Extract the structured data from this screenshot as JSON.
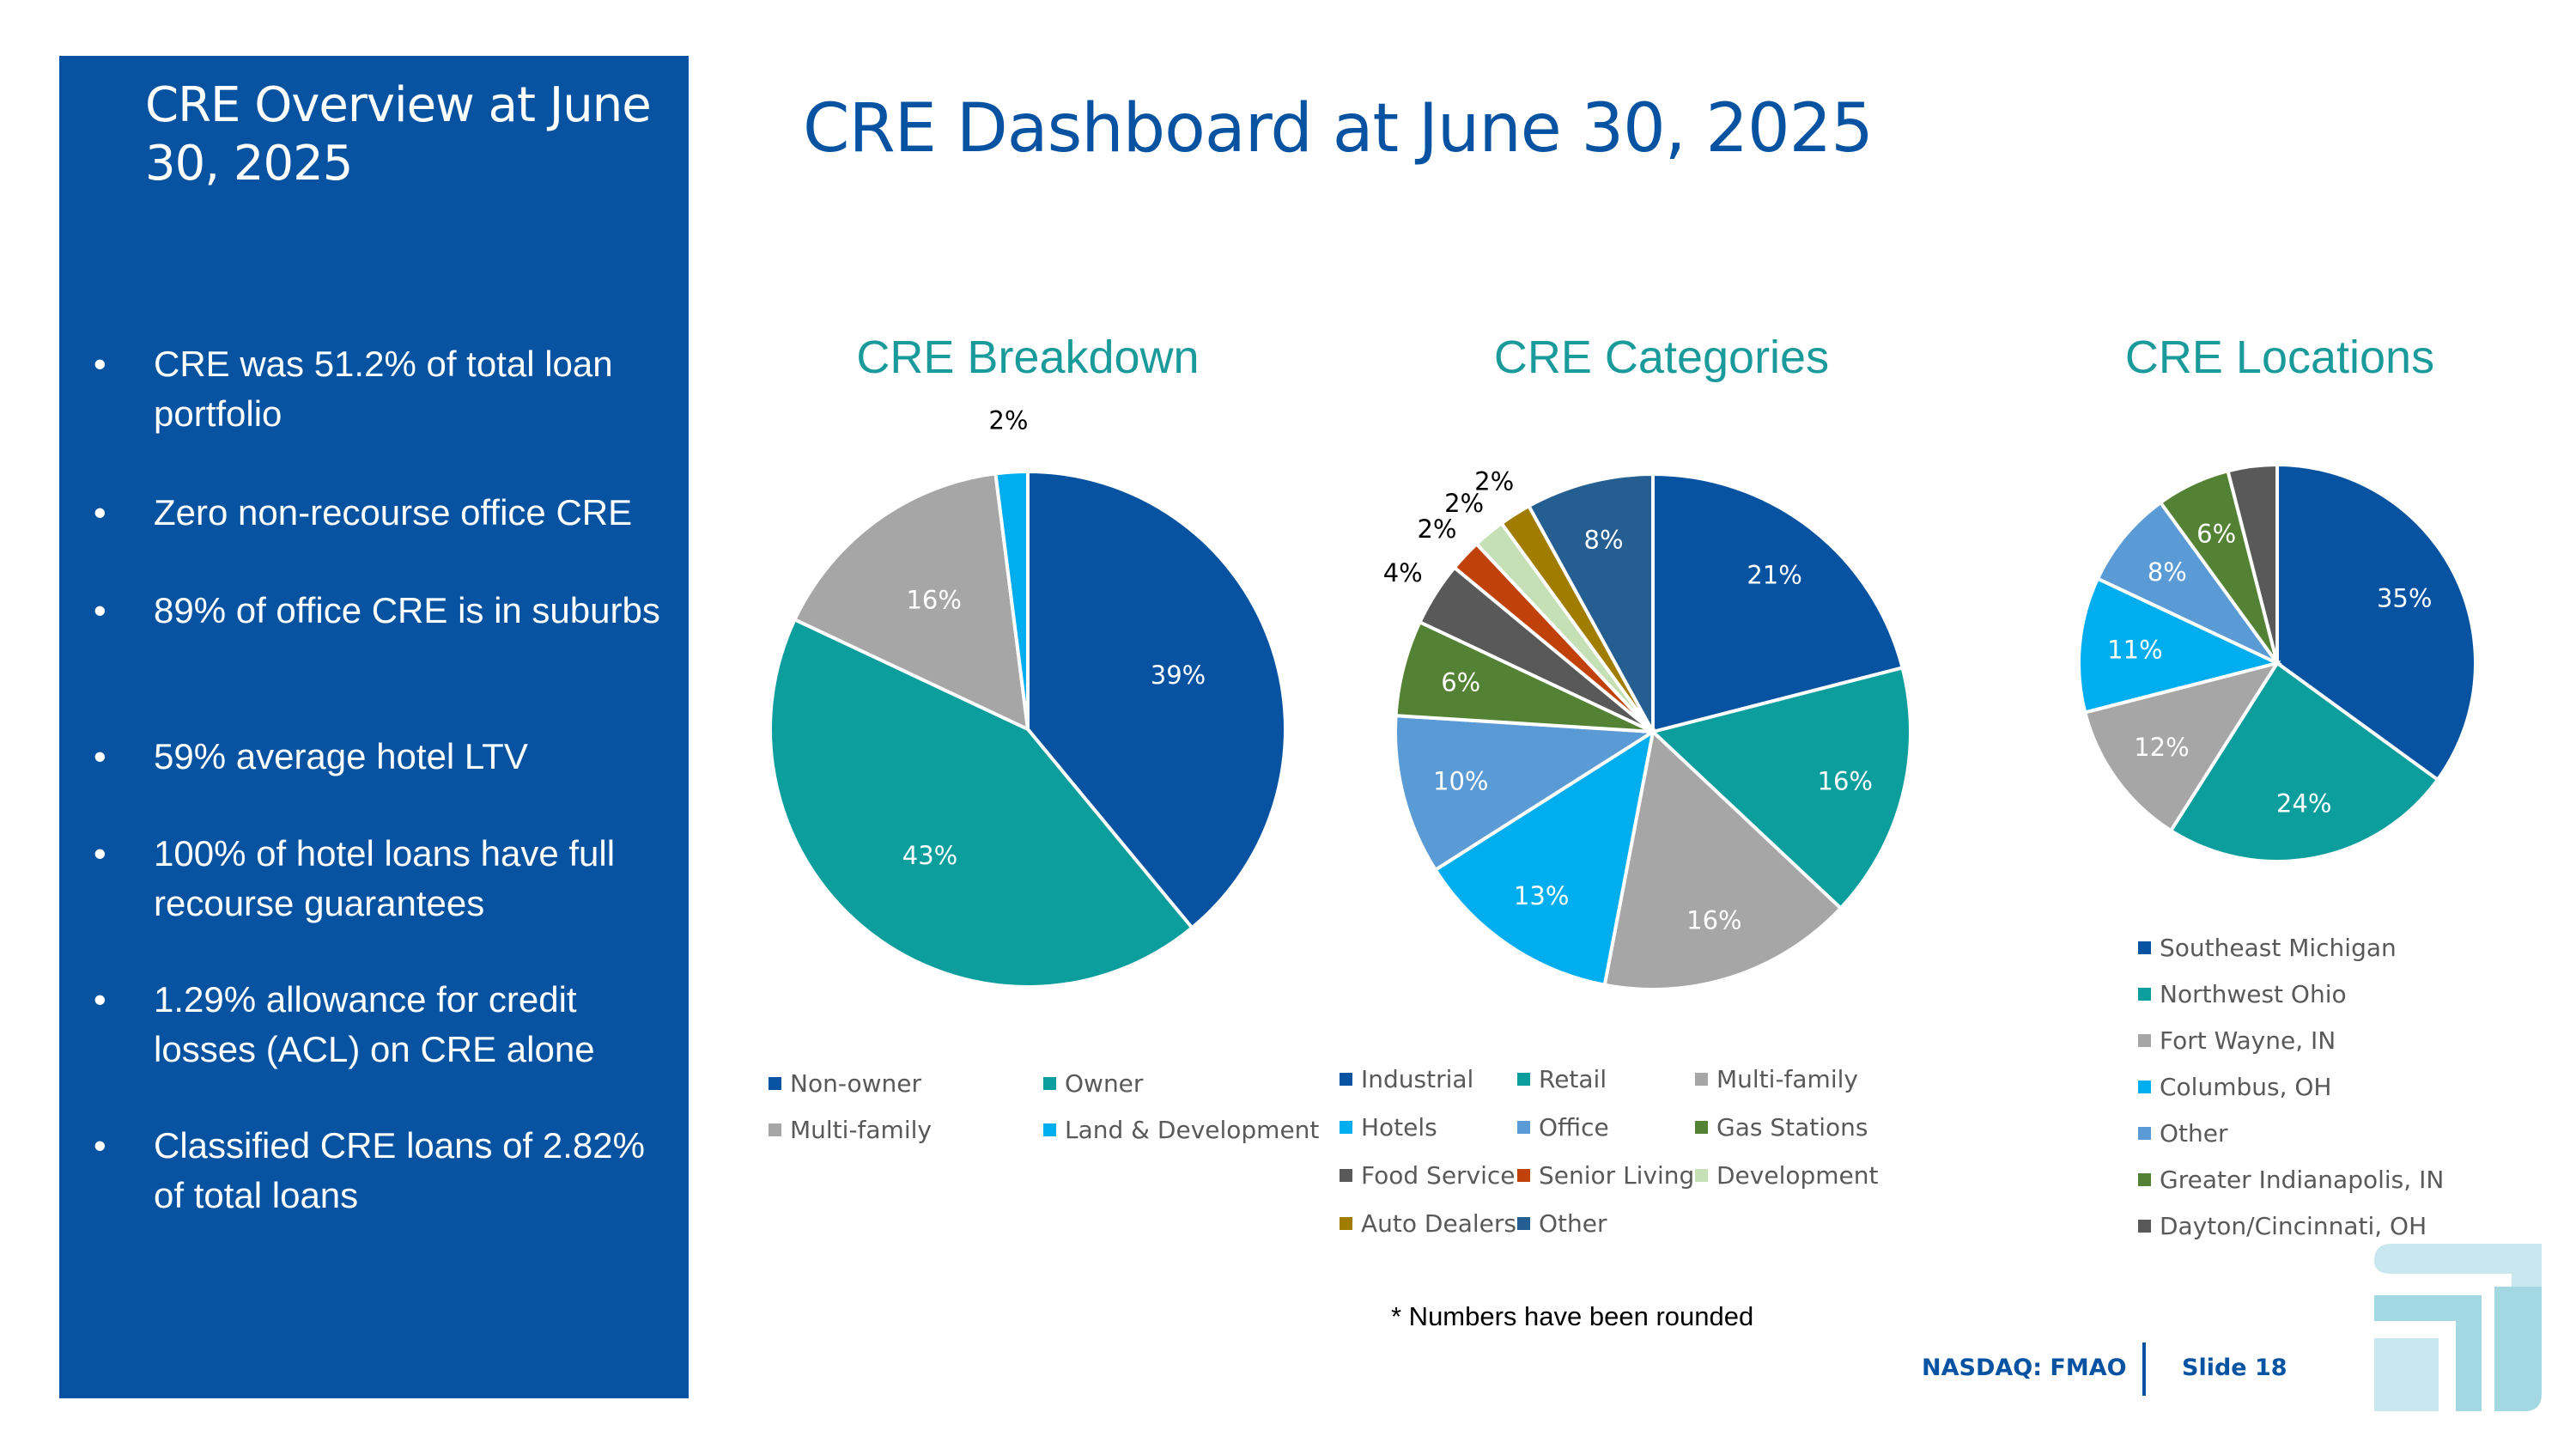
{
  "sidebar": {
    "title": "CRE Overview at June 30, 2025",
    "bullets": [
      "CRE was 51.2% of total loan portfolio",
      "Zero non-recourse office CRE",
      "89% of office CRE is in suburbs",
      "59% average hotel LTV",
      "100% of hotel loans have full recourse guarantees",
      "1.29% allowance for credit losses (ACL) on CRE alone",
      "Classified CRE loans of 2.82% of total loans"
    ],
    "bullet_symbol": "•"
  },
  "page_title": "CRE Dashboard at June 30, 2025",
  "footnote": "* Numbers have been rounded",
  "footer": {
    "ticker": "NASDAQ: FMAO",
    "slide": "Slide 18"
  },
  "colors": {
    "sidebar_bg": "#0753a2",
    "title_blue": "#0753a2",
    "chart_title_teal": "#1a9a9a",
    "logo_light": "#c9e7ee",
    "logo_mid": "#a3d8e3"
  },
  "chart_data": [
    {
      "type": "pie",
      "title": "CRE Breakdown",
      "start": "top, clockwise",
      "categories": [
        "Non-owner",
        "Owner",
        "Multi-family",
        "Land & Development"
      ],
      "values": [
        39,
        43,
        16,
        2
      ],
      "labels": [
        "39%",
        "43%",
        "16%",
        "2%"
      ],
      "colors": [
        "#0753a2",
        "#0c9d9d",
        "#a6a6a6",
        "#00aeef"
      ],
      "label_colors": [
        "#ffffff",
        "#ffffff",
        "#ffffff",
        "#000000"
      ],
      "legend": [
        "Non-owner",
        "Owner",
        "Multi-family",
        "Land & Development"
      ]
    },
    {
      "type": "pie",
      "title": "CRE Categories",
      "start": "top, clockwise",
      "categories": [
        "Industrial",
        "Retail",
        "Multi-family",
        "Hotels",
        "Office",
        "Gas Stations",
        "Food Service",
        "Senior Living",
        "Development",
        "Auto Dealers",
        "Other"
      ],
      "values": [
        21,
        16,
        16,
        13,
        10,
        6,
        4,
        2,
        2,
        2,
        8
      ],
      "labels": [
        "21%",
        "16%",
        "16%",
        "13%",
        "10%",
        "6%",
        "4%",
        "2%",
        "2%",
        "2%",
        "8%"
      ],
      "colors": [
        "#0753a2",
        "#0c9d9d",
        "#a6a6a6",
        "#00aeef",
        "#5b9bd5",
        "#548235",
        "#595959",
        "#c0420a",
        "#c5e0b4",
        "#a07d00",
        "#255e91"
      ],
      "label_colors": [
        "#ffffff",
        "#ffffff",
        "#ffffff",
        "#ffffff",
        "#ffffff",
        "#ffffff",
        "#000000",
        "#000000",
        "#000000",
        "#000000",
        "#ffffff"
      ],
      "legend": [
        "Industrial",
        "Retail",
        "Multi-family",
        "Hotels",
        "Office",
        "Gas Stations",
        "Food Service",
        "Senior Living",
        "Development",
        "Auto Dealers",
        "Other"
      ]
    },
    {
      "type": "pie",
      "title": "CRE Locations",
      "start": "top, clockwise",
      "categories": [
        "Southeast Michigan",
        "Northwest Ohio",
        "Fort Wayne, IN",
        "Columbus, OH",
        "Other",
        "Greater Indianapolis, IN",
        "Dayton/Cincinnati, OH"
      ],
      "values": [
        35,
        24,
        12,
        11,
        8,
        6,
        4
      ],
      "labels": [
        "35%",
        "24%",
        "12%",
        "11%",
        "8%",
        "6%",
        ""
      ],
      "colors": [
        "#0753a2",
        "#0c9d9d",
        "#a6a6a6",
        "#00aeef",
        "#5b9bd5",
        "#548235",
        "#595959"
      ],
      "label_colors": [
        "#ffffff",
        "#ffffff",
        "#ffffff",
        "#ffffff",
        "#ffffff",
        "#ffffff",
        "#ffffff"
      ],
      "legend": [
        "Southeast Michigan",
        "Northwest Ohio",
        "Fort Wayne, IN",
        "Columbus, OH",
        "Other",
        "Greater Indianapolis, IN",
        "Dayton/Cincinnati, OH"
      ]
    }
  ]
}
